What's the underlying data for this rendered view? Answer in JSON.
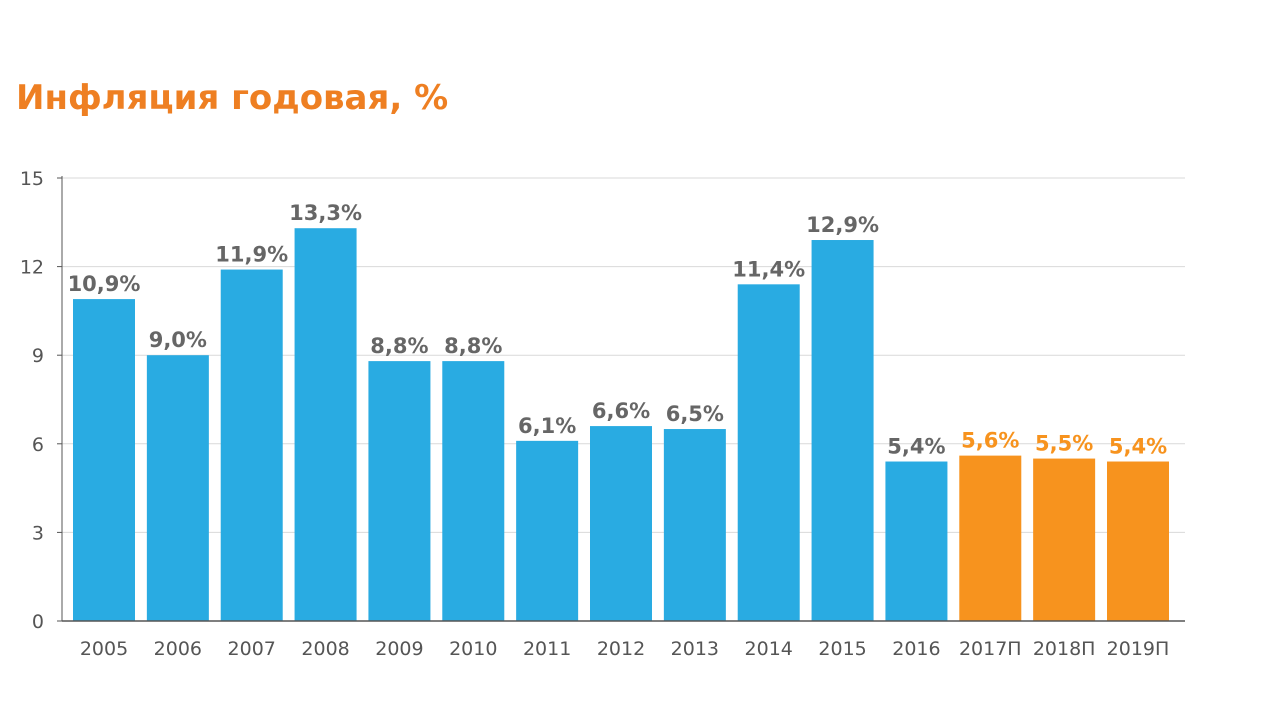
{
  "chart_data": {
    "type": "bar",
    "title": "Инфляция годовая, %",
    "xlabel": "",
    "ylabel": "",
    "ylim": [
      0,
      15
    ],
    "yticks": [
      "0",
      "3",
      "6",
      "9",
      "12",
      "15"
    ],
    "grid": true,
    "legend": "none",
    "categories": [
      "2005",
      "2006",
      "2007",
      "2008",
      "2009",
      "2010",
      "2011",
      "2012",
      "2013",
      "2014",
      "2015",
      "2016",
      "2017П",
      "2018П",
      "2019П"
    ],
    "values": [
      10.9,
      9.0,
      11.9,
      13.3,
      8.8,
      8.8,
      6.1,
      6.6,
      6.5,
      11.4,
      12.9,
      5.4,
      5.6,
      5.5,
      5.4
    ],
    "data_labels": [
      "10,9%",
      "9,0%",
      "11,9%",
      "13,3%",
      "8,8%",
      "8,8%",
      "6,1%",
      "6,6%",
      "6,5%",
      "11,4%",
      "12,9%",
      "5,4%",
      "5,6%",
      "5,5%",
      "5,4%"
    ],
    "forecast": [
      false,
      false,
      false,
      false,
      false,
      false,
      false,
      false,
      false,
      false,
      false,
      false,
      true,
      true,
      true
    ]
  },
  "colors": {
    "title": "#ee7f22",
    "actual_bar": "#29abe2",
    "forecast_bar": "#f7931e",
    "actual_label": "#666666",
    "forecast_label": "#f7931e",
    "gridline": "#d9d9d9",
    "axis": "#555555"
  }
}
